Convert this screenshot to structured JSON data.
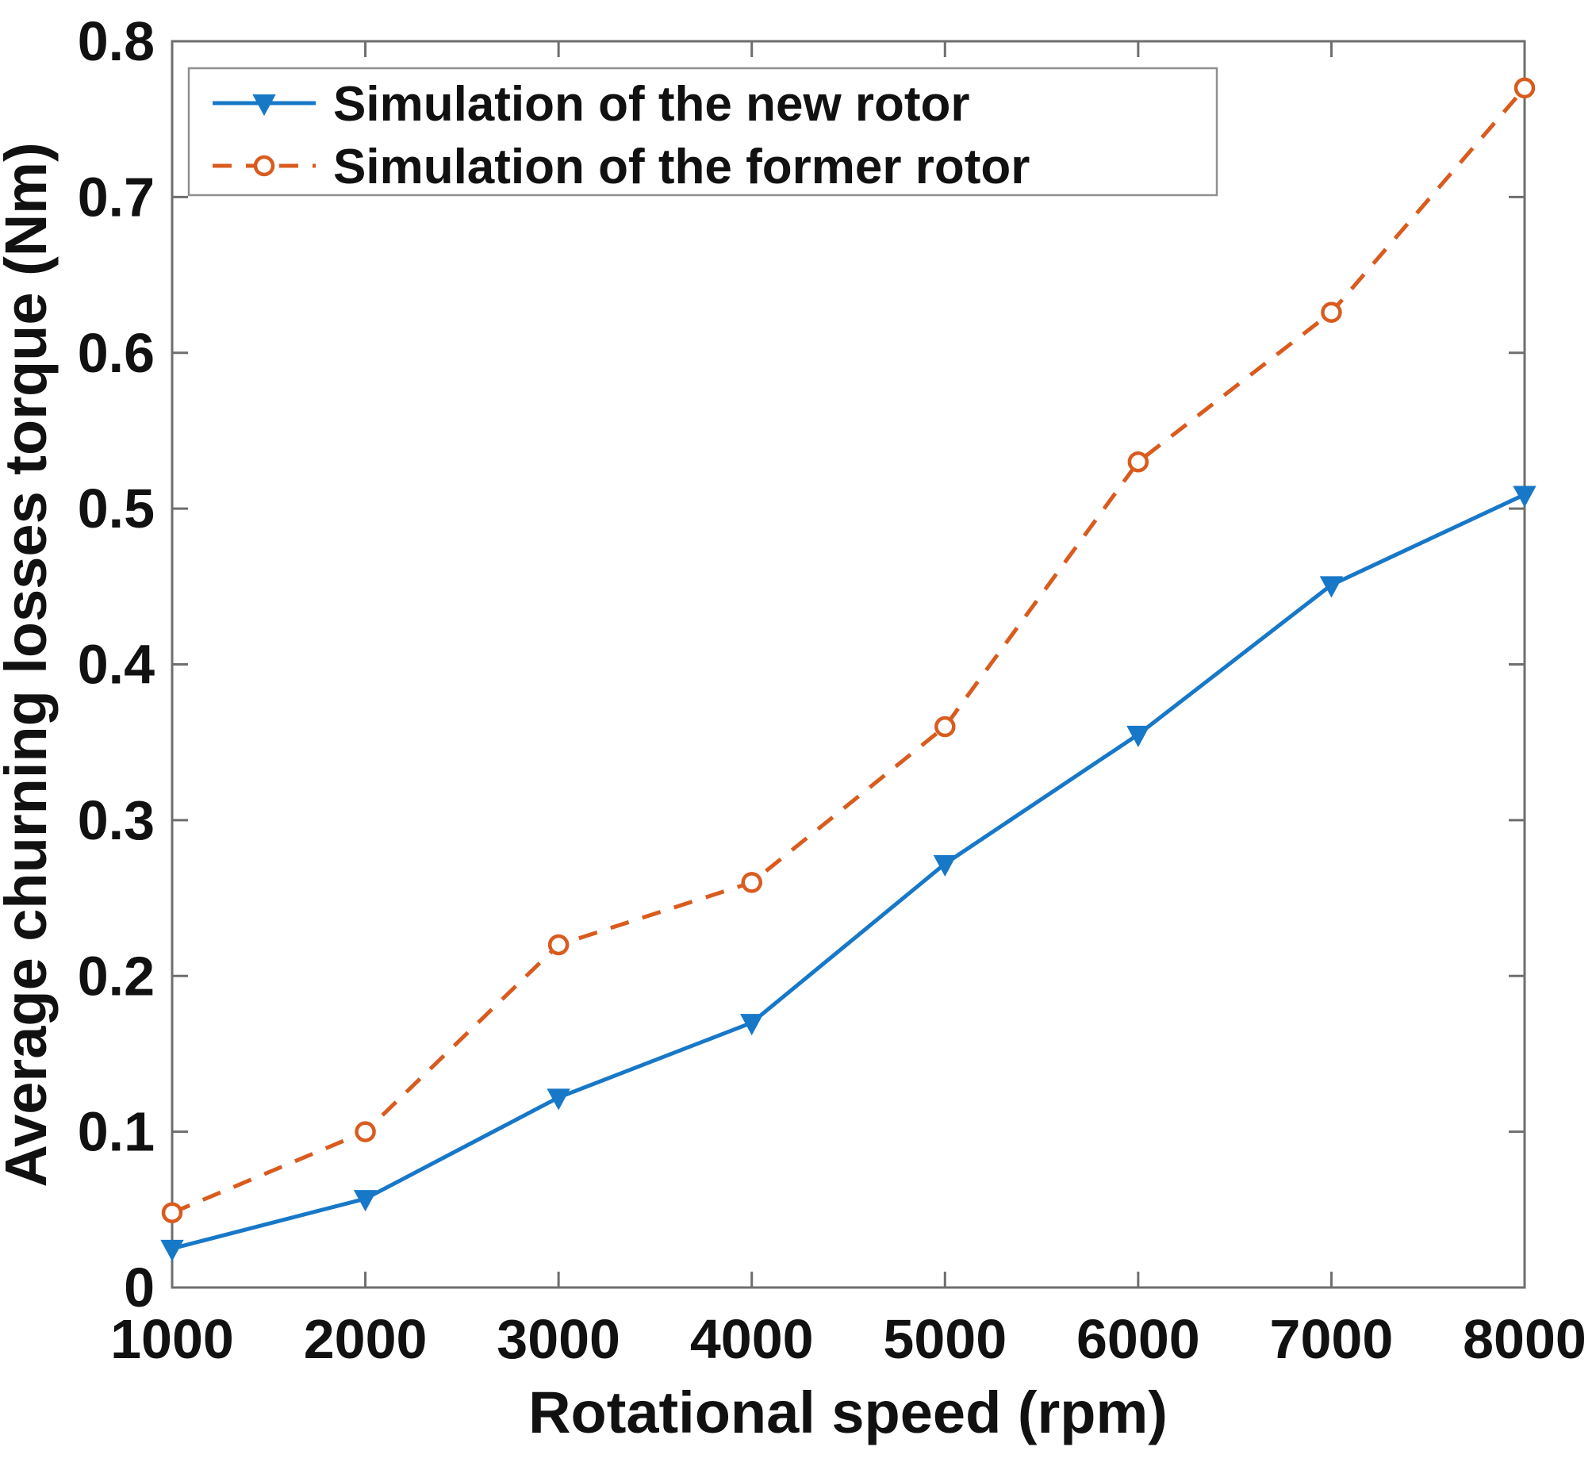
{
  "figure": {
    "background": "#ffffff"
  },
  "chart_data": {
    "type": "line",
    "x": [
      1000,
      2000,
      3000,
      4000,
      5000,
      6000,
      7000,
      8000
    ],
    "series": [
      {
        "name": "Simulation of the new rotor",
        "values": [
          0.025,
          0.057,
          0.122,
          0.17,
          0.272,
          0.355,
          0.451,
          0.509
        ],
        "color": "#1878C8",
        "line_style": "solid",
        "marker": "triangle-down-filled"
      },
      {
        "name": "Simulation of the former rotor",
        "values": [
          0.048,
          0.1,
          0.22,
          0.26,
          0.36,
          0.53,
          0.626,
          0.77
        ],
        "color": "#D95B1E",
        "line_style": "dashed",
        "marker": "circle-open"
      }
    ],
    "xlabel": "Rotational speed (rpm)",
    "ylabel": "Average churning losses torque (Nm)",
    "xlim": [
      1000,
      8000
    ],
    "ylim": [
      0,
      0.8
    ],
    "xticks": [
      1000,
      2000,
      3000,
      4000,
      5000,
      6000,
      7000,
      8000
    ],
    "xticklabels": [
      "1000",
      "2000",
      "3000",
      "4000",
      "5000",
      "6000",
      "7000",
      "8000"
    ],
    "yticks": [
      0,
      0.1,
      0.2,
      0.3,
      0.4,
      0.5,
      0.6,
      0.7,
      0.8
    ],
    "yticklabels": [
      "0",
      "0.1",
      "0.2",
      "0.3",
      "0.4",
      "0.5",
      "0.6",
      "0.7",
      "0.8"
    ],
    "grid": false,
    "legend_position": "top-left",
    "axis_color": "#6e6e6e",
    "tick_label_color": "#111111",
    "legend_border_color": "#8f8f8f"
  }
}
